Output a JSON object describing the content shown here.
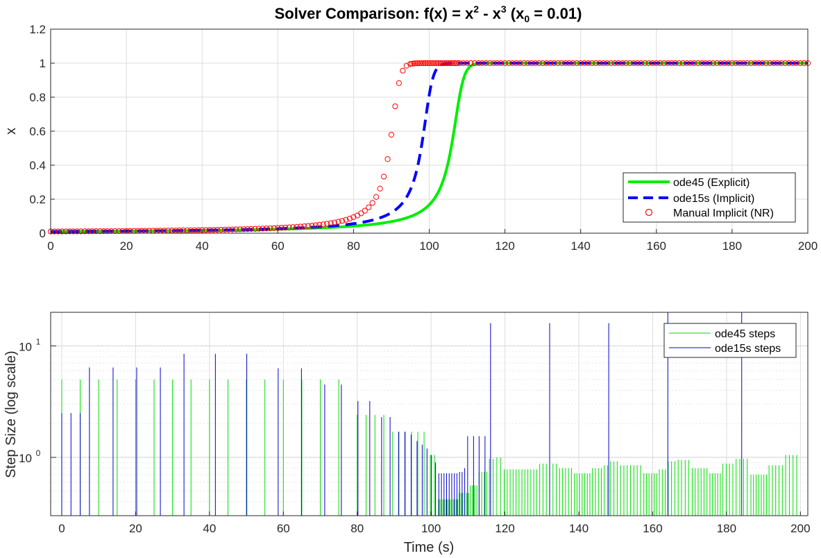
{
  "chart_data": [
    {
      "type": "line",
      "title": "Solver  Comparison:  f(x)  =  x² - x³  (x₀  =  0.01)",
      "title_parts": {
        "main": "Solver  Comparison:  f(x)  =  x",
        "sup1": "2",
        "mid": "  -  x",
        "sup2": "3",
        "paren": "  (x",
        "sub": "0",
        "tail": "  =  0.01)"
      },
      "xlabel": "",
      "ylabel": "x",
      "xlim": [
        0,
        200
      ],
      "ylim": [
        0,
        1.2
      ],
      "xticks": [
        "0",
        "20",
        "40",
        "60",
        "80",
        "100",
        "120",
        "140",
        "160",
        "180",
        "200"
      ],
      "yticks": [
        "0",
        "0.2",
        "0.4",
        "0.6",
        "0.8",
        "1",
        "1.2"
      ],
      "grid": true,
      "legend_position": "bottom-right",
      "series": [
        {
          "name": "ode45 (Explicit)",
          "style": "solid",
          "color": "#00ee00",
          "model": {
            "a": 0.01
          }
        },
        {
          "name": "ode15s (Implicit)",
          "style": "dashed",
          "color": "#0000ff",
          "model": {
            "a": 0.0108
          }
        },
        {
          "name": "Manual Implicit (NR)",
          "style": "marker-circle",
          "color": "#ff0000",
          "model": {
            "a": 0.0118
          },
          "x_start": 0,
          "x_end": 200,
          "x_step": 1
        }
      ]
    },
    {
      "type": "bar",
      "xlabel": "Time (s)",
      "ylabel": "Step Size (log scale)",
      "xlim": [
        -3,
        202
      ],
      "ylim": [
        0.3,
        20
      ],
      "yscale": "log",
      "xticks": [
        "0",
        "20",
        "40",
        "60",
        "80",
        "100",
        "120",
        "140",
        "160",
        "180",
        "200"
      ],
      "yticks": [
        {
          "base": "10",
          "exp": "0",
          "value": 1
        },
        {
          "base": "10",
          "exp": "1",
          "value": 10
        }
      ],
      "grid": true,
      "legend_position": "top-right",
      "series": [
        {
          "name": "ode45 steps",
          "color": "#00dd00",
          "points": [
            [
              0,
              5
            ],
            [
              5,
              5
            ],
            [
              10,
              5
            ],
            [
              15,
              5
            ],
            [
              20,
              5
            ],
            [
              25,
              5
            ],
            [
              30,
              5
            ],
            [
              35,
              5
            ],
            [
              40,
              5
            ],
            [
              45,
              5
            ],
            [
              50,
              5
            ],
            [
              55,
              5
            ],
            [
              60,
              5
            ],
            [
              65,
              5
            ],
            [
              70,
              5
            ],
            [
              75,
              5
            ],
            [
              80,
              2.4
            ],
            [
              82.4,
              2.4
            ],
            [
              84.8,
              2.4
            ],
            [
              87.2,
              2.4
            ],
            [
              89.6,
              1.7
            ],
            [
              91.3,
              1.7
            ],
            [
              93,
              1.7
            ],
            [
              94.7,
              1.7
            ],
            [
              96.4,
              1.7
            ],
            [
              98.1,
              1.7
            ],
            [
              99.8,
              1.05
            ],
            [
              100.9,
              1.05
            ],
            [
              102,
              0.42
            ],
            [
              102.4,
              0.42
            ],
            [
              102.8,
              0.42
            ],
            [
              103.2,
              0.42
            ],
            [
              103.6,
              0.42
            ],
            [
              104,
              0.42
            ],
            [
              104.4,
              0.42
            ],
            [
              104.8,
              0.42
            ],
            [
              105.2,
              0.42
            ],
            [
              105.6,
              0.42
            ],
            [
              106,
              0.42
            ],
            [
              106.4,
              0.42
            ],
            [
              106.8,
              0.42
            ],
            [
              107.2,
              0.42
            ],
            [
              107.6,
              0.48
            ],
            [
              108.1,
              0.48
            ],
            [
              108.6,
              0.48
            ],
            [
              109.1,
              0.48
            ],
            [
              109.6,
              0.48
            ],
            [
              110.1,
              0.48
            ],
            [
              110.6,
              0.56
            ],
            [
              111.2,
              0.56
            ],
            [
              111.8,
              0.56
            ],
            [
              112.4,
              0.56
            ],
            [
              113,
              0.74
            ],
            [
              113.7,
              0.74
            ],
            [
              114.4,
              0.74
            ],
            [
              115.1,
              0.74
            ],
            [
              115.8,
              0.97
            ],
            [
              116.8,
              0.97
            ],
            [
              117.8,
              1.0
            ],
            [
              118.8,
              1.0
            ],
            [
              119.8,
              0.78
            ],
            [
              120.6,
              0.78
            ],
            [
              121.4,
              0.78
            ],
            [
              122.2,
              0.78
            ],
            [
              123,
              0.78
            ],
            [
              123.8,
              0.78
            ],
            [
              124.6,
              0.78
            ],
            [
              125.4,
              0.78
            ],
            [
              126.2,
              0.78
            ],
            [
              127,
              0.78
            ],
            [
              127.8,
              0.78
            ],
            [
              128.6,
              0.78
            ],
            [
              129.4,
              0.88
            ],
            [
              130.3,
              0.88
            ],
            [
              131.2,
              0.88
            ],
            [
              132.1,
              0.88
            ],
            [
              133,
              0.88
            ],
            [
              133.9,
              0.88
            ],
            [
              134.8,
              0.8
            ],
            [
              135.6,
              0.8
            ],
            [
              136.4,
              0.8
            ],
            [
              137.2,
              0.8
            ],
            [
              138,
              0.8
            ],
            [
              138.8,
              0.72
            ],
            [
              139.5,
              0.72
            ],
            [
              140.2,
              0.72
            ],
            [
              140.9,
              0.72
            ],
            [
              141.6,
              0.72
            ],
            [
              142.3,
              0.72
            ],
            [
              143,
              0.72
            ],
            [
              143.7,
              0.8
            ],
            [
              144.5,
              0.8
            ],
            [
              145.3,
              0.8
            ],
            [
              146.1,
              0.8
            ],
            [
              146.9,
              0.85
            ],
            [
              147.8,
              0.85
            ],
            [
              148.6,
              0.92
            ],
            [
              149.5,
              0.92
            ],
            [
              150.4,
              0.92
            ],
            [
              151.3,
              0.85
            ],
            [
              152.2,
              0.85
            ],
            [
              153.1,
              0.85
            ],
            [
              154,
              0.85
            ],
            [
              154.9,
              0.85
            ],
            [
              155.8,
              0.85
            ],
            [
              156.7,
              0.85
            ],
            [
              157.6,
              0.72
            ],
            [
              158.3,
              0.72
            ],
            [
              159,
              0.72
            ],
            [
              159.7,
              0.72
            ],
            [
              160.4,
              0.72
            ],
            [
              161.1,
              0.72
            ],
            [
              161.8,
              0.78
            ],
            [
              162.6,
              0.78
            ],
            [
              163.4,
              0.78
            ],
            [
              164.2,
              0.92
            ],
            [
              165.1,
              0.92
            ],
            [
              166,
              0.92
            ],
            [
              166.9,
              0.95
            ],
            [
              167.8,
              0.95
            ],
            [
              168.8,
              0.95
            ],
            [
              169.7,
              0.95
            ],
            [
              170.7,
              0.8
            ],
            [
              171.5,
              0.8
            ],
            [
              172.3,
              0.8
            ],
            [
              173.1,
              0.8
            ],
            [
              173.9,
              0.8
            ],
            [
              174.7,
              0.8
            ],
            [
              175.5,
              0.72
            ],
            [
              176.2,
              0.72
            ],
            [
              176.9,
              0.72
            ],
            [
              177.6,
              0.72
            ],
            [
              178.3,
              0.72
            ],
            [
              179,
              0.88
            ],
            [
              179.9,
              0.88
            ],
            [
              180.8,
              0.88
            ],
            [
              181.7,
              0.88
            ],
            [
              182.6,
              0.97
            ],
            [
              183.6,
              0.97
            ],
            [
              184.6,
              0.97
            ],
            [
              185.6,
              0.97
            ],
            [
              186.6,
              0.7
            ],
            [
              187.3,
              0.7
            ],
            [
              188,
              0.7
            ],
            [
              188.7,
              0.7
            ],
            [
              189.4,
              0.7
            ],
            [
              190.1,
              0.7
            ],
            [
              190.8,
              0.7
            ],
            [
              191.5,
              0.85
            ],
            [
              192.4,
              0.85
            ],
            [
              193.3,
              0.85
            ],
            [
              194.2,
              0.85
            ],
            [
              195.1,
              0.85
            ],
            [
              196,
              1.05
            ],
            [
              197,
              1.05
            ],
            [
              198,
              1.05
            ],
            [
              199,
              1.05
            ]
          ]
        },
        {
          "name": "ode15s steps",
          "color": "#0000cc",
          "points": [
            [
              0,
              2.5
            ],
            [
              2.5,
              2.5
            ],
            [
              5,
              2.5
            ],
            [
              7.5,
              6.4
            ],
            [
              13.9,
              6.4
            ],
            [
              20.3,
              6.4
            ],
            [
              26.7,
              6.4
            ],
            [
              33.1,
              8.5
            ],
            [
              41.6,
              8.5
            ],
            [
              50.1,
              8.5
            ],
            [
              58.6,
              6.3
            ],
            [
              64.9,
              6.3
            ],
            [
              71.2,
              4.5
            ],
            [
              75.7,
              4.5
            ],
            [
              80.2,
              3.2
            ],
            [
              83.4,
              3.2
            ],
            [
              86.6,
              2.3
            ],
            [
              88.9,
              2.3
            ],
            [
              91.2,
              1.7
            ],
            [
              92.9,
              1.7
            ],
            [
              94.6,
              1.6
            ],
            [
              96.2,
              1.4
            ],
            [
              97.6,
              1.3
            ],
            [
              98.9,
              1.2
            ],
            [
              100.1,
              1.05
            ],
            [
              101.2,
              0.9
            ],
            [
              102.1,
              0.72
            ],
            [
              102.8,
              0.72
            ],
            [
              103.5,
              0.72
            ],
            [
              104.2,
              0.72
            ],
            [
              104.9,
              0.72
            ],
            [
              105.6,
              0.72
            ],
            [
              106.3,
              0.72
            ],
            [
              107,
              0.72
            ],
            [
              107.7,
              0.74
            ],
            [
              108.4,
              0.74
            ],
            [
              109.1,
              0.8
            ],
            [
              109.9,
              1.55
            ],
            [
              111.5,
              1.55
            ],
            [
              113,
              1.55
            ],
            [
              114.6,
              1.55
            ],
            [
              116.1,
              16
            ],
            [
              132.1,
              16
            ],
            [
              148.1,
              16
            ],
            [
              164.1,
              20
            ],
            [
              184.1,
              20
            ]
          ]
        }
      ]
    }
  ]
}
